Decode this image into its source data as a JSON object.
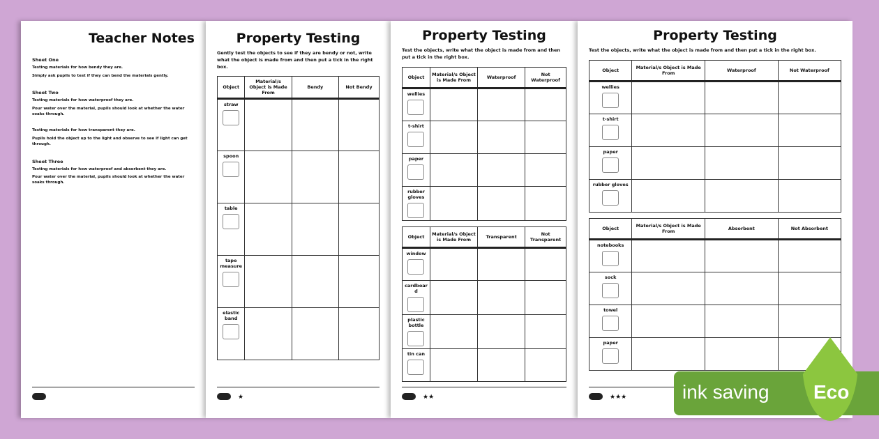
{
  "teacher_notes": {
    "title": "Teacher Notes",
    "sections": [
      {
        "heading": "Sheet One",
        "lines": [
          "Testing materials for how bendy they are.",
          "Simply ask pupils to test if they can bend the materials gently."
        ]
      },
      {
        "heading": "Sheet Two",
        "lines": [
          "Testing materials for how waterproof they are.",
          "Pour water over the material, pupils should look at whether the water soaks through."
        ]
      },
      {
        "heading": "",
        "lines": [
          "Testing materials for how transparent they are.",
          "Pupils hold the object up to the light and observe to see if light can get through."
        ]
      },
      {
        "heading": "Sheet Three",
        "lines": [
          "Testing materials for how waterproof and absorbent they are.",
          "Pour water over the material, pupils should look at whether the water soaks through."
        ]
      }
    ]
  },
  "sheet1": {
    "title": "Property Testing",
    "intro": "Gently test the objects to see if they are bendy or not, write what the object is made from and then put a tick in the right box.",
    "tables": [
      {
        "headers": [
          "Object",
          "Material/s Object is Made From",
          "Bendy",
          "Not Bendy"
        ],
        "rows": [
          "straw",
          "spoon",
          "table",
          "tape measure",
          "elastic band"
        ]
      }
    ],
    "stars": "★"
  },
  "sheet2": {
    "title": "Property Testing",
    "intro": "Test the objects, write what the object is made from and then put a tick in the right box.",
    "tables": [
      {
        "headers": [
          "Object",
          "Material/s Object is Made From",
          "Waterproof",
          "Not Waterproof"
        ],
        "rows": [
          "wellies",
          "t-shirt",
          "paper",
          "rubber gloves"
        ]
      },
      {
        "headers": [
          "Object",
          "Material/s Object is Made From",
          "Transparent",
          "Not Transparent"
        ],
        "rows": [
          "window",
          "cardboard",
          "plastic bottle",
          "tin can"
        ]
      }
    ],
    "stars": "★★"
  },
  "sheet3": {
    "title": "Property Testing",
    "intro": "Test the objects, write what the object is made from and then put a tick in the right box.",
    "tables": [
      {
        "headers": [
          "Object",
          "Material/s Object is Made From",
          "Waterproof",
          "Not Waterproof"
        ],
        "rows": [
          "wellies",
          "t-shirt",
          "paper",
          "rubber gloves"
        ]
      },
      {
        "headers": [
          "Object",
          "Material/s Object is Made From",
          "Absorbent",
          "Not Absorbent"
        ],
        "rows": [
          "notebooks",
          "sock",
          "towel",
          "paper"
        ]
      }
    ],
    "stars": "★★★"
  },
  "badge": {
    "label": "ink saving",
    "eco": "Eco",
    "color": "#6aa43a",
    "leaf_color": "#8cc63f",
    "icon": "leaf-icon"
  }
}
